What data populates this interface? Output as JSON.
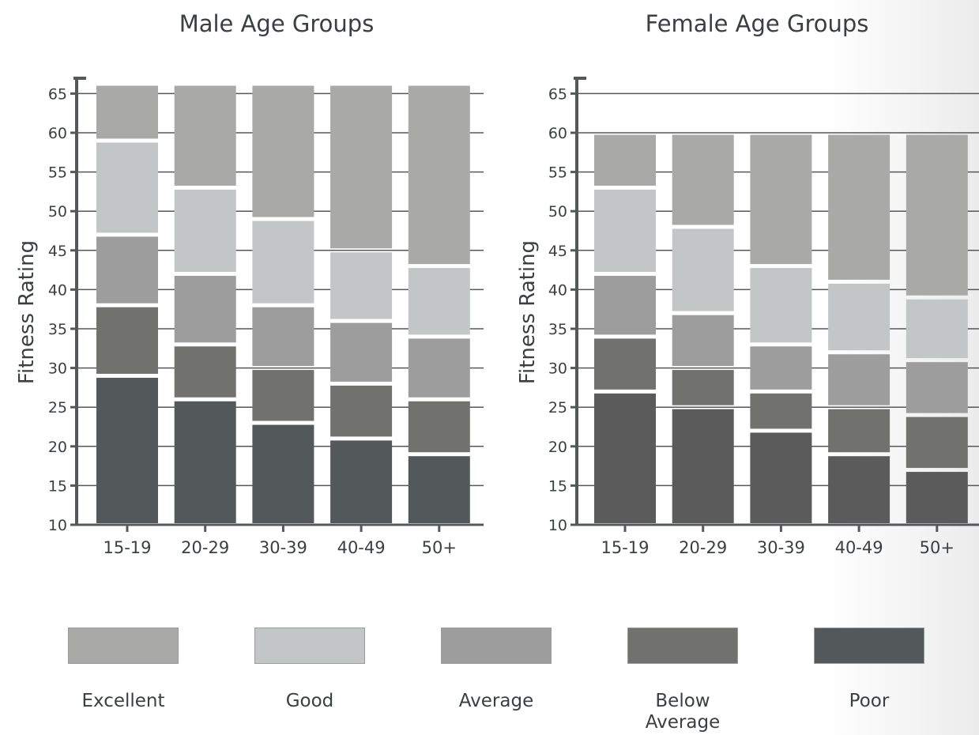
{
  "chart_data": [
    {
      "type": "bar",
      "stacked": true,
      "title": "Male Age Groups",
      "ylabel": "Fitness Rating",
      "ylim": [
        10,
        66
      ],
      "yticks": [
        10,
        15,
        20,
        25,
        30,
        35,
        40,
        45,
        50,
        55,
        60,
        65
      ],
      "categories": [
        "15-19",
        "20-29",
        "30-39",
        "40-49",
        "50+"
      ],
      "series": [
        {
          "name": "Poor",
          "ranges": [
            [
              10,
              29
            ],
            [
              10,
              26
            ],
            [
              10,
              23
            ],
            [
              10,
              21
            ],
            [
              10,
              19
            ]
          ]
        },
        {
          "name": "Below Average",
          "ranges": [
            [
              29,
              38
            ],
            [
              26,
              33
            ],
            [
              23,
              30
            ],
            [
              21,
              28
            ],
            [
              19,
              26
            ]
          ]
        },
        {
          "name": "Average",
          "ranges": [
            [
              38,
              47
            ],
            [
              33,
              42
            ],
            [
              30,
              38
            ],
            [
              28,
              36
            ],
            [
              26,
              34
            ]
          ]
        },
        {
          "name": "Good",
          "ranges": [
            [
              47,
              59
            ],
            [
              42,
              53
            ],
            [
              38,
              49
            ],
            [
              36,
              45
            ],
            [
              34,
              43
            ]
          ]
        },
        {
          "name": "Excellent",
          "ranges": [
            [
              59,
              66
            ],
            [
              53,
              66
            ],
            [
              49,
              66
            ],
            [
              45,
              66
            ],
            [
              43,
              66
            ]
          ]
        }
      ]
    },
    {
      "type": "bar",
      "stacked": true,
      "title": "Female Age Groups",
      "ylabel": "Fitness Rating",
      "ylim": [
        10,
        66
      ],
      "yticks": [
        10,
        15,
        20,
        25,
        30,
        35,
        40,
        45,
        50,
        55,
        60,
        65
      ],
      "categories": [
        "15-19",
        "20-29",
        "30-39",
        "40-49",
        "50+"
      ],
      "series": [
        {
          "name": "Poor",
          "ranges": [
            [
              10,
              27
            ],
            [
              10,
              25
            ],
            [
              10,
              22
            ],
            [
              10,
              19
            ],
            [
              10,
              17
            ]
          ]
        },
        {
          "name": "Below Average",
          "ranges": [
            [
              27,
              34
            ],
            [
              25,
              30
            ],
            [
              22,
              27
            ],
            [
              19,
              25
            ],
            [
              17,
              24
            ]
          ]
        },
        {
          "name": "Average",
          "ranges": [
            [
              34,
              42
            ],
            [
              30,
              37
            ],
            [
              27,
              33
            ],
            [
              25,
              32
            ],
            [
              24,
              31
            ]
          ]
        },
        {
          "name": "Good",
          "ranges": [
            [
              42,
              53
            ],
            [
              37,
              48
            ],
            [
              33,
              43
            ],
            [
              32,
              41
            ],
            [
              31,
              39
            ]
          ]
        },
        {
          "name": "Excellent",
          "ranges": [
            [
              53,
              60
            ],
            [
              48,
              60
            ],
            [
              43,
              60
            ],
            [
              41,
              60
            ],
            [
              39,
              60
            ]
          ]
        }
      ]
    }
  ],
  "legend": [
    {
      "label": "Excellent",
      "color": "#a9aaa8"
    },
    {
      "label": "Good",
      "color": "#c3c6c6"
    },
    {
      "label": "Average",
      "color": "#9d9d9d"
    },
    {
      "label": "Below\nAverage",
      "color": "#71716d"
    },
    {
      "label": "Poor",
      "color": "#53585a"
    }
  ],
  "colors": {
    "Excellent": "#a9aaa8",
    "Good": "#c3c6c6",
    "Average": "#9d9d9d",
    "Below Average": "#71716d",
    "Poor": "#53585a",
    "Poor (female)": "#5b5b5b",
    "axis": "#53585a",
    "text": "#3a3f43"
  }
}
